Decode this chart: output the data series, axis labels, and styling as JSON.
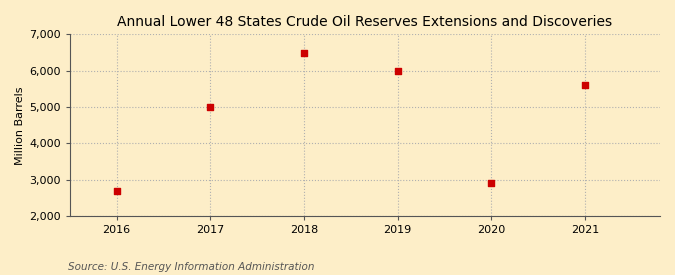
{
  "title": "Annual Lower 48 States Crude Oil Reserves Extensions and Discoveries",
  "ylabel": "Million Barrels",
  "source": "Source: U.S. Energy Information Administration",
  "x": [
    2016,
    2017,
    2018,
    2019,
    2020,
    2021
  ],
  "y": [
    2700,
    5000,
    6500,
    6000,
    2900,
    5600
  ],
  "xlim": [
    2015.5,
    2021.8
  ],
  "ylim": [
    2000,
    7000
  ],
  "yticks": [
    2000,
    3000,
    4000,
    5000,
    6000,
    7000
  ],
  "xticks": [
    2016,
    2017,
    2018,
    2019,
    2020,
    2021
  ],
  "marker_color": "#cc0000",
  "marker_size": 5,
  "grid_color": "#b0b0b0",
  "background_color": "#fdeec8",
  "title_fontsize": 10,
  "axis_fontsize": 8,
  "tick_fontsize": 8,
  "source_fontsize": 7.5
}
